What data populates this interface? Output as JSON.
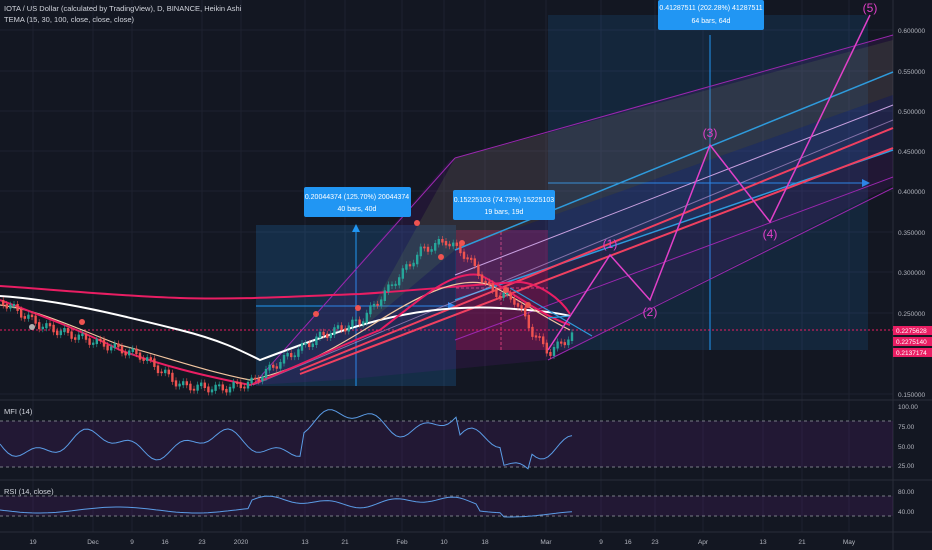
{
  "header": {
    "symbol_line": "IOTA / US Dollar (calculated by TradingView), D, BINANCE, Heikin Ashi",
    "indicator_line": "TEMA (15, 30, 100, close, close, close)"
  },
  "price_axis": {
    "ticks": [
      "0.600000",
      "0.550000",
      "0.500000",
      "0.450000",
      "0.400000",
      "0.350000",
      "0.300000",
      "0.250000",
      "0.150000"
    ],
    "labels": [
      {
        "text": "0.2275628",
        "color": "#e91e63"
      },
      {
        "text": "0.2275140",
        "color": "#e91e63"
      },
      {
        "text": "0.2137174",
        "color": "#e91e63"
      }
    ]
  },
  "mfi": {
    "title": "MFI (14)",
    "ticks": [
      "100.00",
      "75.00",
      "50.00",
      "25.00"
    ]
  },
  "rsi": {
    "title": "RSI (14, close)",
    "ticks": [
      "80.00",
      "40.00"
    ]
  },
  "time_axis": [
    "19",
    "Dec",
    "9",
    "16",
    "23",
    "2020",
    "13",
    "21",
    "Feb",
    "10",
    "18",
    "Mar",
    "9",
    "16",
    "23",
    "Apr",
    "13",
    "21",
    "May"
  ],
  "measurements": [
    {
      "line1": "0.20044374 (125.70%) 20044374",
      "line2": "40 bars, 40d"
    },
    {
      "line1": "0.15225103 (74.73%) 15225103",
      "line2": "19 bars, 19d"
    },
    {
      "line1": "0.41287511 (202.28%) 41287511",
      "line2": "64 bars, 64d"
    }
  ],
  "wave_labels": [
    "(1)",
    "(2)",
    "(3)",
    "(4)",
    "(5)"
  ],
  "colors": {
    "background": "#131722",
    "wave": "#e040c8",
    "measure": "#2196f3",
    "up_candle": "#26a69a",
    "down_candle": "#ef5350",
    "tema_fast": "#e91e63",
    "tema_mid": "#f3c6a0",
    "tema_slow": "#ffffff",
    "pitchfork_blue": "#2e9bdc",
    "pitchfork_red": "#f04060"
  }
}
